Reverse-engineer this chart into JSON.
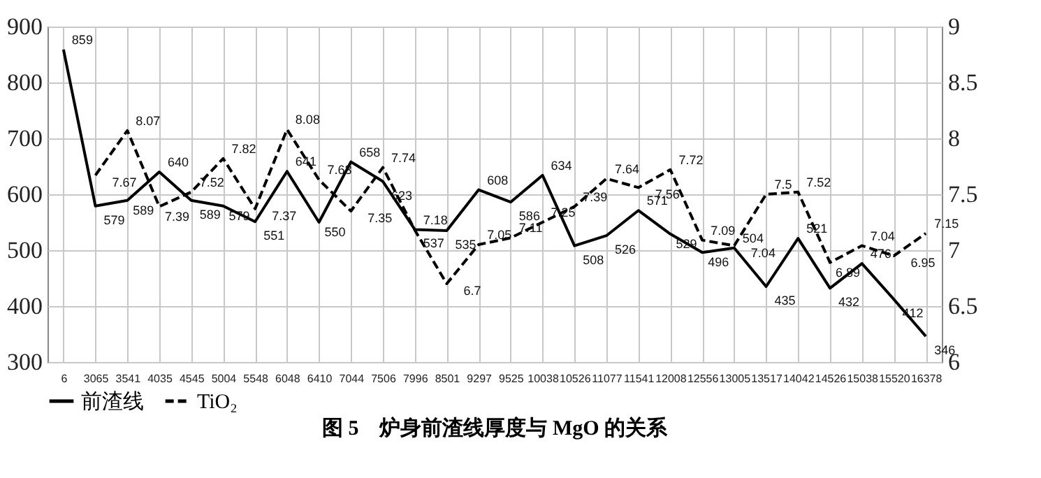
{
  "chart_data": {
    "type": "line",
    "title": "图 5　炉身前渣线厚度与 MgO 的关系",
    "categories": [
      "6",
      "3065",
      "3541",
      "4035",
      "4545",
      "5004",
      "5548",
      "6048",
      "6410",
      "7044",
      "7506",
      "7996",
      "8501",
      "9297",
      "9525",
      "10038",
      "10526",
      "11077",
      "11541",
      "12008",
      "12556",
      "13005",
      "13517",
      "14042",
      "14526",
      "15038",
      "15520",
      "16378"
    ],
    "series": [
      {
        "name": "前渣线",
        "color": "#000000",
        "line_style": "solid",
        "values": [
          859,
          579,
          589,
          640,
          589,
          579,
          551,
          641,
          550,
          658,
          623,
          537,
          535,
          608,
          586,
          634,
          508,
          526,
          571,
          529,
          496,
          504,
          435,
          521,
          432,
          476,
          412,
          346
        ]
      },
      {
        "name": "TiO₂",
        "color": "#000000",
        "line_style": "dashed",
        "axis": "y2",
        "values": [
          null,
          7.67,
          8.07,
          7.39,
          7.52,
          7.82,
          7.37,
          8.08,
          7.63,
          7.35,
          7.74,
          7.18,
          6.7,
          7.05,
          7.11,
          7.25,
          7.39,
          7.64,
          7.56,
          7.72,
          7.09,
          7.04,
          7.5,
          7.52,
          6.89,
          7.04,
          6.95,
          7.15
        ]
      }
    ],
    "ylim": [
      300,
      900
    ],
    "yticks": [
      300,
      400,
      500,
      600,
      700,
      800,
      900
    ],
    "y2lim": [
      6,
      9
    ],
    "y2ticks": [
      6,
      6.5,
      7,
      7.5,
      8,
      8.5,
      9
    ],
    "grid": true,
    "legend": "bottom",
    "marker": "none",
    "data_labels": true
  }
}
